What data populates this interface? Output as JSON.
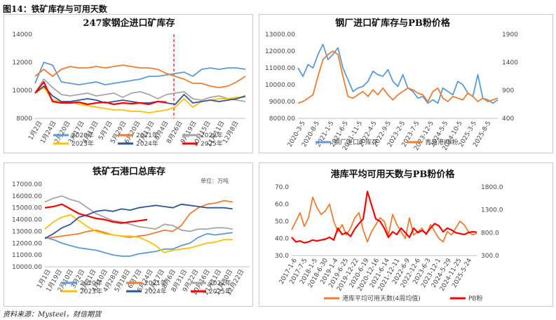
{
  "figure_title": "图14：铁矿库存与可用天数",
  "footer": "资料来源：Mysteel，财信期货",
  "chart_data": [
    {
      "id": "c1",
      "type": "line",
      "title": "247家钢企进口矿库存",
      "ylim": [
        8000,
        14000
      ],
      "yticks": [
        "8000",
        "10000",
        "12000",
        "14000"
      ],
      "xticks": [
        "1月2日",
        "1月24日",
        "2月20日",
        "3月17日",
        "4月13日",
        "5月7日",
        "5月29日",
        "6月20日",
        "7月13日",
        "8月4日",
        "8月26日",
        "9月19日",
        "10月15日",
        "11月11日",
        "12月8日"
      ],
      "legend": [
        "2020年",
        "2021年",
        "2022年",
        "2023年",
        "2024年",
        "2025年"
      ],
      "series": [
        {
          "name": "2020年",
          "color": "#5b9bd5",
          "values": [
            10500,
            12000,
            11800,
            10600,
            10500,
            10400,
            10500,
            10600,
            10400,
            10500,
            10600,
            10700,
            10800,
            11000,
            11000,
            11100,
            11200,
            11300,
            11000,
            11500,
            11600,
            11500,
            11600,
            11600,
            11500
          ]
        },
        {
          "name": "2021年",
          "color": "#ed7d31",
          "values": [
            11000,
            11500,
            11000,
            11500,
            11700,
            11600,
            11600,
            11700,
            11600,
            11700,
            11800,
            11700,
            11600,
            11600,
            11500,
            11200,
            11000,
            10800,
            10500,
            10500,
            10300,
            10200,
            10300,
            10600,
            11000
          ]
        },
        {
          "name": "2022年",
          "color": "#a5a5a5",
          "values": [
            9800,
            10800,
            10200,
            9700,
            9600,
            9700,
            9800,
            9600,
            9700,
            9800,
            9500,
            9800,
            9900,
            9700,
            9400,
            9700,
            9800,
            9900,
            9400,
            9300,
            9500,
            9600,
            9400,
            9300,
            9200
          ]
        },
        {
          "name": "2023年",
          "color": "#ffc000",
          "values": [
            9800,
            10200,
            9300,
            9200,
            9200,
            9000,
            8900,
            8800,
            8700,
            8600,
            8600,
            8500,
            8500,
            8400,
            8500,
            8600,
            8800,
            9400,
            8800,
            9200,
            9300,
            9400,
            9400,
            9500,
            9500
          ]
        },
        {
          "name": "2024年",
          "color": "#2f5597",
          "values": [
            9800,
            10300,
            9600,
            9200,
            9200,
            9300,
            9400,
            9300,
            9100,
            9200,
            9300,
            9200,
            9100,
            9100,
            9200,
            9100,
            9000,
            9700,
            9100,
            9200,
            9300,
            9200,
            9300,
            9400,
            9600
          ]
        },
        {
          "name": "2025年",
          "color": "#ff0000",
          "values": [
            9800,
            10600,
            9200,
            9100,
            9100,
            9150,
            9000,
            9100,
            9150,
            9000,
            9100,
            9050,
            9100,
            9000,
            9200,
            9150
          ]
        }
      ],
      "marker_x_fraction": 0.66
    },
    {
      "id": "c2",
      "type": "line",
      "title": "钢厂进口矿库存与PB粉价格",
      "ylim": [
        8000,
        13000
      ],
      "yticks": [
        "8000.00",
        "9000.00",
        "10000.00",
        "11000.00",
        "12000.00",
        "13000.00"
      ],
      "ylim_right": [
        400,
        1900
      ],
      "yticks_right": [
        "400",
        "900",
        "1400",
        "1900"
      ],
      "xticks": [
        "2020-3-5",
        "2020-8-5",
        "2021-1-5",
        "2021-6-5",
        "2021-11-5",
        "2022-4-5",
        "2022-9-5",
        "2023-2-5",
        "2023-7-5",
        "2023-12-5",
        "2024-5-5",
        "2024-10-5",
        "2025-3-5",
        "2025-8-5"
      ],
      "legend": [
        "钢厂进口矿库存",
        "青岛港PB粉"
      ],
      "series": [
        {
          "name": "钢厂进口矿库存",
          "color": "#5b9bd5",
          "axis": "left",
          "values": [
            11000,
            10500,
            11200,
            11000,
            11800,
            12400,
            11500,
            11800,
            12200,
            11000,
            10300,
            9600,
            9800,
            9900,
            10200,
            10800,
            10600,
            10500,
            10900,
            10200,
            9900,
            10600,
            9800,
            9600,
            9200,
            9300,
            8900,
            9100,
            8900,
            9800,
            9600,
            9400,
            10200,
            10000,
            9500,
            9300,
            10600,
            9200,
            9100,
            8900,
            9100
          ]
        },
        {
          "name": "青岛港PB粉",
          "color": "#ed7d31",
          "axis": "left",
          "values": [
            8900,
            9000,
            9200,
            9400,
            10500,
            11500,
            11800,
            12000,
            11800,
            10500,
            9300,
            9200,
            9400,
            9600,
            9300,
            9700,
            9400,
            9800,
            9400,
            9100,
            9400,
            9600,
            9800,
            9700,
            9500,
            9400,
            9000,
            9600,
            9800,
            9200,
            9000,
            9300,
            9200,
            9100,
            9500,
            9300,
            9000,
            9200,
            9000,
            9100,
            9200
          ]
        }
      ]
    },
    {
      "id": "c3",
      "type": "line",
      "title": "铁矿石港口总库存",
      "unit_label": "单位：万吨",
      "ylim": [
        10000,
        17000
      ],
      "yticks": [
        "10000.00",
        "11000.00",
        "12000.00",
        "13000.00",
        "14000.00",
        "15000.00",
        "16000.00",
        "17000.00"
      ],
      "xticks": [
        "1月1日",
        "1月19日",
        "2月10日",
        "3月2日",
        "3月21日",
        "4月10日",
        "4月28日",
        "5月18日",
        "6月7日",
        "6月24日",
        "7月17日",
        "8月6日",
        "8月31日",
        "9月22日",
        "10月16日",
        "11月11日",
        "11月30日",
        "12月22日"
      ],
      "legend": [
        "2020年",
        "2021年",
        "2022年",
        "2023年",
        "2024年",
        "2025年"
      ],
      "series": [
        {
          "name": "2020年",
          "color": "#5b9bd5",
          "values": [
            12500,
            12300,
            12000,
            11800,
            11600,
            11500,
            11400,
            11200,
            11000,
            10900,
            10900,
            11100,
            11200,
            11300,
            11500,
            11500,
            11800,
            12000,
            12500,
            12800,
            12700,
            12800,
            12900
          ]
        },
        {
          "name": "2021年",
          "color": "#ed7d31",
          "values": [
            12400,
            12500,
            12600,
            12700,
            12800,
            13000,
            13100,
            12900,
            12700,
            12600,
            12500,
            12600,
            12700,
            12900,
            13100,
            13000,
            13500,
            14500,
            15000,
            15300,
            15400,
            15600,
            15500
          ]
        },
        {
          "name": "2022年",
          "color": "#a5a5a5",
          "values": [
            15500,
            15800,
            16000,
            15700,
            15500,
            15000,
            14500,
            14200,
            13900,
            13800,
            13600,
            13400,
            13300,
            13200,
            13600,
            13500,
            13100,
            13000,
            13200,
            13200,
            13300,
            13300,
            13200
          ]
        },
        {
          "name": "2023年",
          "color": "#ffc000",
          "values": [
            13200,
            13800,
            14200,
            14400,
            13900,
            13400,
            13000,
            12800,
            12700,
            12600,
            12600,
            12500,
            12200,
            11800,
            11200,
            11400,
            11500,
            11600,
            11800,
            12000,
            12100,
            12300,
            12300
          ]
        },
        {
          "name": "2024年",
          "color": "#2f5597",
          "values": [
            12400,
            12800,
            13300,
            13600,
            14200,
            14400,
            14700,
            14800,
            14700,
            14900,
            14800,
            15000,
            15100,
            15200,
            15100,
            15000,
            15300,
            15200,
            15100,
            15000,
            15000,
            15000,
            14900
          ]
        },
        {
          "name": "2025年",
          "color": "#ff0000",
          "values": [
            15000,
            15100,
            15300,
            14900,
            14500,
            14300,
            14100,
            14000,
            13800,
            13700,
            13800,
            13900,
            14000
          ]
        }
      ]
    },
    {
      "id": "c4",
      "type": "line",
      "title": "港库平均可用天数与PB粉价格",
      "ylim": [
        30,
        70
      ],
      "yticks": [
        "30.0",
        "40.0",
        "50.0",
        "60.0",
        "70.0"
      ],
      "ylim_right": [
        300,
        1800
      ],
      "yticks_right": [
        "300.0",
        "800.0",
        "1300.0",
        "1800.0"
      ],
      "xticks": [
        "2017-1-6",
        "2017-7-5",
        "2018-1-5",
        "2018-6-30",
        "2019-1-4",
        "2019-6-25",
        "2019-12-22",
        "2020-6-19",
        "2020-12-16",
        "2021-6-14",
        "2021-12-11",
        "2022-6-9",
        "2022-12-6",
        "2023-6-3",
        "2023-12-1",
        "2024-5-29",
        "2024-11-25",
        "2025-5-24"
      ],
      "legend": [
        "港库平均可用天数(4周均值)",
        "PB粉"
      ],
      "series": [
        {
          "name": "港库平均可用天数(4周均值)",
          "color": "#ed7d31",
          "axis": "left",
          "values": [
            45,
            50,
            55,
            47,
            52,
            64,
            58,
            54,
            56,
            60,
            50,
            44,
            48,
            42,
            46,
            52,
            55,
            45,
            38,
            44,
            48,
            52,
            50,
            42,
            54,
            48,
            44,
            40,
            52,
            42,
            44,
            46,
            42,
            48,
            44,
            40,
            38,
            44,
            42,
            46,
            50,
            48,
            44,
            42,
            43
          ]
        },
        {
          "name": "PB粉",
          "color": "#ff0000",
          "axis": "right",
          "values": [
            700,
            600,
            620,
            580,
            600,
            640,
            620,
            640,
            660,
            700,
            640,
            900,
            760,
            800,
            720,
            880,
            1000,
            1100,
            1700,
            1400,
            1100,
            1050,
            900,
            700,
            820,
            760,
            900,
            800,
            700,
            900,
            800,
            850,
            780,
            900,
            1000,
            950,
            820,
            900,
            860,
            800,
            780,
            760,
            800,
            820,
            810
          ]
        }
      ]
    }
  ]
}
